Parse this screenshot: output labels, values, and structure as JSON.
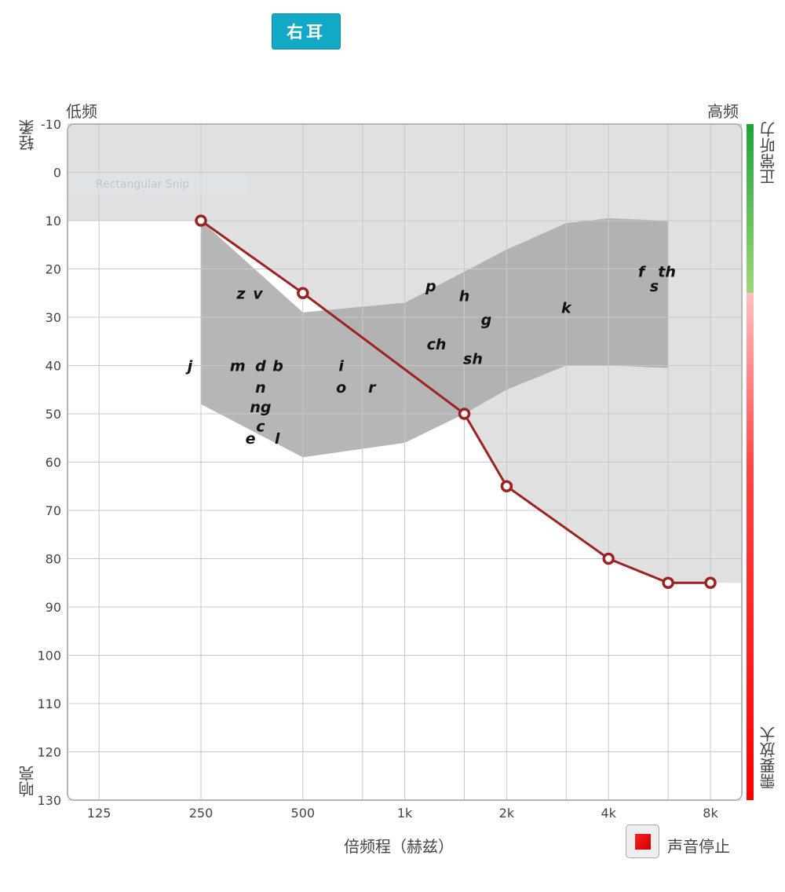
{
  "ear_button": "右耳",
  "ghost_overlay_text": "Rectangular Snip",
  "stop_button": {
    "label": "声音停止",
    "color": "#e00000"
  },
  "chart_data": {
    "type": "line",
    "xlabel": "倍频程（赫兹）",
    "x_corner_labels": {
      "left": "低频",
      "right": "高频"
    },
    "y_corner_labels": {
      "top": "轻柔",
      "bottom": "响亮"
    },
    "side_bar_labels": {
      "top": "正常听力",
      "bottom": "需要放大"
    },
    "x_scale": "log2",
    "x_ticks": [
      {
        "v": 125,
        "label": "125"
      },
      {
        "v": 250,
        "label": "250"
      },
      {
        "v": 500,
        "label": "500"
      },
      {
        "v": 1000,
        "label": "1k"
      },
      {
        "v": 2000,
        "label": "2k"
      },
      {
        "v": 4000,
        "label": "4k"
      },
      {
        "v": 8000,
        "label": "8k"
      }
    ],
    "x_minor_gridlines": [
      750,
      1500,
      3000,
      6000
    ],
    "xlim": [
      100,
      10000
    ],
    "ylim": [
      -10,
      130
    ],
    "y_inverted": true,
    "y_ticks": [
      -10,
      0,
      10,
      20,
      30,
      40,
      50,
      60,
      70,
      80,
      90,
      100,
      110,
      120,
      130
    ],
    "grid": true,
    "series": [
      {
        "x": [
          250,
          500,
          1500,
          2000,
          4000,
          6000,
          8000
        ],
        "y": [
          10,
          25,
          50,
          65,
          80,
          85,
          85
        ],
        "color": "#9b2323"
      }
    ],
    "speech_banana": {
      "color": "#a9a9a9",
      "upper": [
        [
          250,
          10
        ],
        [
          500,
          29
        ],
        [
          1000,
          27
        ],
        [
          2000,
          16
        ],
        [
          3000,
          10.5
        ],
        [
          4000,
          9.5
        ],
        [
          6000,
          10
        ]
      ],
      "lower": [
        [
          250,
          48
        ],
        [
          500,
          59
        ],
        [
          1000,
          56
        ],
        [
          1500,
          50
        ],
        [
          2000,
          45
        ],
        [
          3000,
          40
        ],
        [
          4000,
          40
        ],
        [
          6000,
          40.5
        ]
      ]
    },
    "inaudible_region_color": "#e0e0e0",
    "phonemes": [
      {
        "t": "z",
        "f": 328,
        "db": 25
      },
      {
        "t": "v",
        "f": 368,
        "db": 25
      },
      {
        "t": "j",
        "f": 232,
        "db": 40
      },
      {
        "t": "m",
        "f": 321,
        "db": 40
      },
      {
        "t": "d",
        "f": 375,
        "db": 40
      },
      {
        "t": "b",
        "f": 422,
        "db": 40
      },
      {
        "t": "n",
        "f": 375,
        "db": 44.5
      },
      {
        "t": "ng",
        "f": 375,
        "db": 48.5
      },
      {
        "t": "c",
        "f": 375,
        "db": 52.5
      },
      {
        "t": "e",
        "f": 350,
        "db": 55
      },
      {
        "t": "l",
        "f": 420,
        "db": 55
      },
      {
        "t": "i",
        "f": 649,
        "db": 40
      },
      {
        "t": "o",
        "f": 649,
        "db": 44.5
      },
      {
        "t": "r",
        "f": 800,
        "db": 44.5
      },
      {
        "t": "p",
        "f": 1194,
        "db": 23.5
      },
      {
        "t": "h",
        "f": 1500,
        "db": 25.5
      },
      {
        "t": "g",
        "f": 1741,
        "db": 30.5
      },
      {
        "t": "ch",
        "f": 1241,
        "db": 35.5
      },
      {
        "t": "sh",
        "f": 1590,
        "db": 38.5
      },
      {
        "t": "k",
        "f": 3000,
        "db": 28
      },
      {
        "t": "f",
        "f": 5000,
        "db": 20.5
      },
      {
        "t": "th",
        "f": 5950,
        "db": 20.5
      },
      {
        "t": "s",
        "f": 5460,
        "db": 23.5
      }
    ]
  }
}
